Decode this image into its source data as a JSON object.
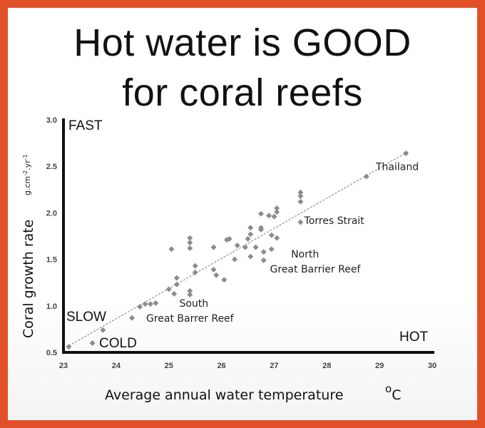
{
  "chart_data": {
    "type": "scatter",
    "title": "Hot water is GOOD",
    "subtitle": "for coral reefs",
    "xlabel": "Average annual water temperature",
    "xlabel_unit": "oC",
    "ylabel": "Coral growth rate",
    "ylabel_unit": "g.cm-2.yr-1",
    "xlim": [
      23,
      30
    ],
    "ylim": [
      0.5,
      3.0
    ],
    "x_ticks": [
      "23",
      "24",
      "25",
      "26",
      "27",
      "28",
      "29",
      "30"
    ],
    "y_ticks": [
      "0.5",
      "1.0",
      "1.5",
      "2.0",
      "2.5",
      "3.0"
    ],
    "grid": false,
    "trendline": {
      "x": [
        23.1,
        29.55
      ],
      "y": [
        0.57,
        2.66
      ]
    },
    "points": [
      {
        "x": 23.1,
        "y": 0.56
      },
      {
        "x": 23.55,
        "y": 0.6
      },
      {
        "x": 23.75,
        "y": 0.74
      },
      {
        "x": 24.3,
        "y": 0.87
      },
      {
        "x": 24.45,
        "y": 0.99
      },
      {
        "x": 24.55,
        "y": 1.02
      },
      {
        "x": 24.65,
        "y": 1.02
      },
      {
        "x": 24.75,
        "y": 1.03
      },
      {
        "x": 25.0,
        "y": 1.18
      },
      {
        "x": 25.1,
        "y": 1.13
      },
      {
        "x": 25.15,
        "y": 1.23
      },
      {
        "x": 25.15,
        "y": 1.3
      },
      {
        "x": 25.4,
        "y": 1.12
      },
      {
        "x": 25.4,
        "y": 1.16
      },
      {
        "x": 25.5,
        "y": 1.36
      },
      {
        "x": 25.5,
        "y": 1.43
      },
      {
        "x": 25.05,
        "y": 1.61
      },
      {
        "x": 25.4,
        "y": 1.62
      },
      {
        "x": 25.4,
        "y": 1.68
      },
      {
        "x": 25.4,
        "y": 1.73
      },
      {
        "x": 25.85,
        "y": 1.39
      },
      {
        "x": 25.9,
        "y": 1.33
      },
      {
        "x": 25.85,
        "y": 1.63
      },
      {
        "x": 26.05,
        "y": 1.28
      },
      {
        "x": 26.1,
        "y": 1.71
      },
      {
        "x": 26.15,
        "y": 1.72
      },
      {
        "x": 26.25,
        "y": 1.5
      },
      {
        "x": 26.3,
        "y": 1.65
      },
      {
        "x": 26.45,
        "y": 1.63
      },
      {
        "x": 26.5,
        "y": 1.72
      },
      {
        "x": 26.55,
        "y": 1.77
      },
      {
        "x": 26.55,
        "y": 1.84
      },
      {
        "x": 26.55,
        "y": 1.53
      },
      {
        "x": 26.65,
        "y": 1.63
      },
      {
        "x": 26.75,
        "y": 1.82
      },
      {
        "x": 26.75,
        "y": 1.84
      },
      {
        "x": 26.75,
        "y": 1.99
      },
      {
        "x": 26.8,
        "y": 1.58
      },
      {
        "x": 26.8,
        "y": 1.49
      },
      {
        "x": 26.9,
        "y": 1.97
      },
      {
        "x": 26.95,
        "y": 1.76
      },
      {
        "x": 26.95,
        "y": 1.61
      },
      {
        "x": 27.0,
        "y": 1.96
      },
      {
        "x": 27.05,
        "y": 2.01
      },
      {
        "x": 27.05,
        "y": 2.05
      },
      {
        "x": 27.05,
        "y": 1.73
      },
      {
        "x": 27.5,
        "y": 2.12
      },
      {
        "x": 27.5,
        "y": 2.18
      },
      {
        "x": 27.5,
        "y": 2.22
      },
      {
        "x": 27.5,
        "y": 1.9
      },
      {
        "x": 28.75,
        "y": 2.39
      },
      {
        "x": 29.5,
        "y": 2.64
      }
    ],
    "annotations": [
      {
        "id": "thailand",
        "lines": [
          "Thailand"
        ],
        "x": 28.93,
        "y": 2.46
      },
      {
        "id": "torres",
        "lines": [
          "Torres Strait"
        ],
        "x": 27.57,
        "y": 1.88
      },
      {
        "id": "north-gbr",
        "lines": [
          "North",
          "Great Barrier Reef"
        ],
        "x": 27.32,
        "y": 1.52,
        "x2": 26.92,
        "y2": 1.36
      },
      {
        "id": "south-gbr",
        "lines": [
          "South",
          "Great Barrer Reef"
        ],
        "x": 25.2,
        "y": 0.99,
        "x2": 24.57,
        "y2": 0.83
      }
    ],
    "corner_labels": {
      "fast": "FAST",
      "slow": "SLOW",
      "cold": "COLD",
      "hot": "HOT"
    }
  }
}
